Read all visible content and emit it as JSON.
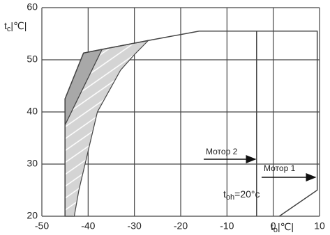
{
  "chart_data": {
    "type": "envelope",
    "xlim": [
      -50,
      10
    ],
    "ylim": [
      20,
      60
    ],
    "xticks": [
      -50,
      -40,
      -30,
      -20,
      -10,
      0,
      10
    ],
    "yticks": [
      20,
      30,
      40,
      50,
      60
    ],
    "grid": true,
    "y_label": {
      "main": "t",
      "sub": "c",
      "unit": "|℃|"
    },
    "x_label": {
      "main": "t",
      "sub": "o",
      "unit": "|℃|"
    },
    "annotation": {
      "main": "t",
      "sub": "oh",
      "rest": "=20°c"
    },
    "motors": [
      "Мотор 2",
      "Мотор 1"
    ],
    "polygons": [
      {
        "color": "#d4d4d4",
        "hatched": true,
        "x": [
          -45,
          -45,
          -37,
          -27,
          -30,
          -33,
          -38,
          -42,
          -43
        ],
        "y": [
          20,
          37.5,
          52,
          53.7,
          51,
          48,
          40,
          25,
          20
        ]
      },
      {
        "color": "#a8a8a8",
        "hatched": false,
        "x": [
          -45,
          -41,
          -37,
          -45
        ],
        "y": [
          42.5,
          51.3,
          52,
          37.5
        ]
      }
    ],
    "lines": [
      {
        "x": [
          -45,
          -45,
          -41,
          -37,
          -27,
          -16,
          9.5,
          9.5,
          1.3
        ],
        "y": [
          20,
          42.5,
          51.3,
          52,
          53.7,
          55.5,
          55.5,
          25,
          20
        ]
      },
      {
        "x": [
          -3.6,
          -3.6
        ],
        "y": [
          55.5,
          20
        ]
      }
    ]
  }
}
